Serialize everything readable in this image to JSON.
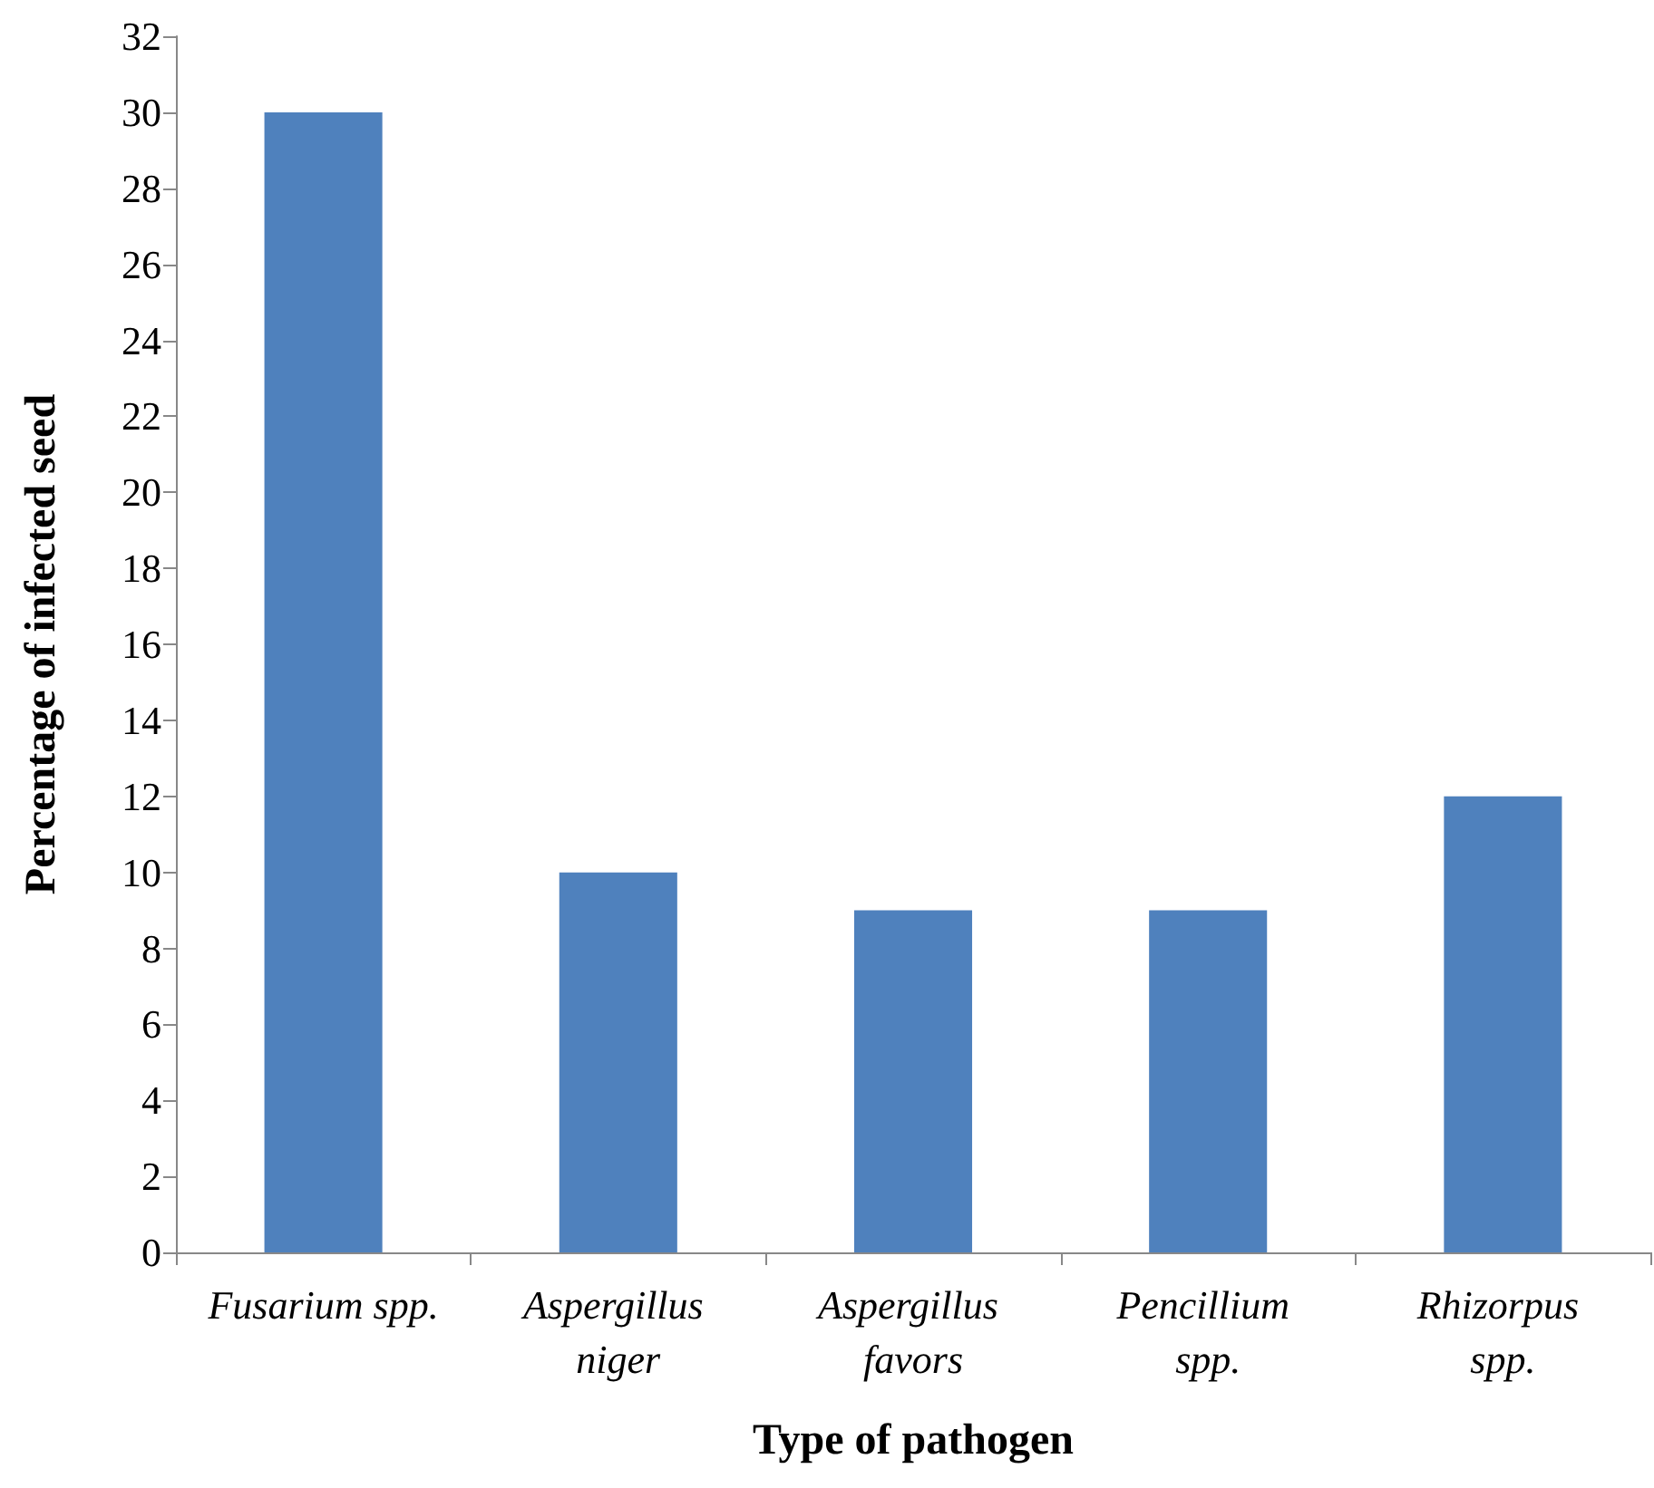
{
  "chart_data": {
    "type": "bar",
    "xlabel": "Type of pathogen",
    "ylabel": "Percentage of infected seed",
    "categories": [
      "Fusarium spp.",
      "Aspergillus niger",
      "Aspergillus favors",
      "Pencillium spp.",
      "Rhizorpus spp."
    ],
    "values": [
      30,
      10,
      9,
      9,
      12
    ],
    "color": "#4f81bd",
    "ylim": [
      0,
      32
    ],
    "yticks": [
      0,
      2,
      4,
      6,
      8,
      10,
      12,
      14,
      16,
      18,
      20,
      22,
      24,
      26,
      28,
      30,
      32
    ],
    "grid": false
  }
}
